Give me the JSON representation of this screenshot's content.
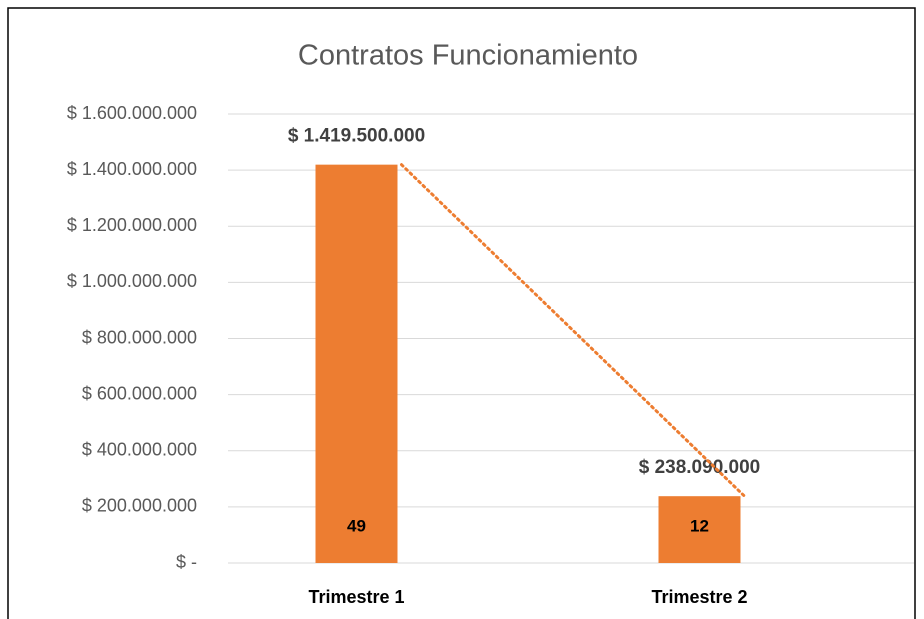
{
  "chart_data": {
    "type": "bar",
    "title": "Contratos Funcionamiento",
    "categories": [
      "Trimestre 1",
      "Trimestre 2"
    ],
    "values": [
      1419500000,
      238090000
    ],
    "value_labels": [
      "$ 1.419.500.000",
      "$ 238.090.000"
    ],
    "bar_labels": [
      49,
      12
    ],
    "color": "#ED7D31",
    "trendline": true,
    "ylim": [
      0,
      1600000000
    ],
    "yticks": [
      {
        "value": 0,
        "label": "$ -"
      },
      {
        "value": 200000000,
        "label": "$ 200.000.000"
      },
      {
        "value": 400000000,
        "label": "$ 400.000.000"
      },
      {
        "value": 600000000,
        "label": "$ 600.000.000"
      },
      {
        "value": 800000000,
        "label": "$ 800.000.000"
      },
      {
        "value": 1000000000,
        "label": "$ 1.000.000.000"
      },
      {
        "value": 1200000000,
        "label": "$ 1.200.000.000"
      },
      {
        "value": 1400000000,
        "label": "$ 1.400.000.000"
      },
      {
        "value": 1600000000,
        "label": "$ 1.600.000.000"
      }
    ],
    "grid": true
  }
}
